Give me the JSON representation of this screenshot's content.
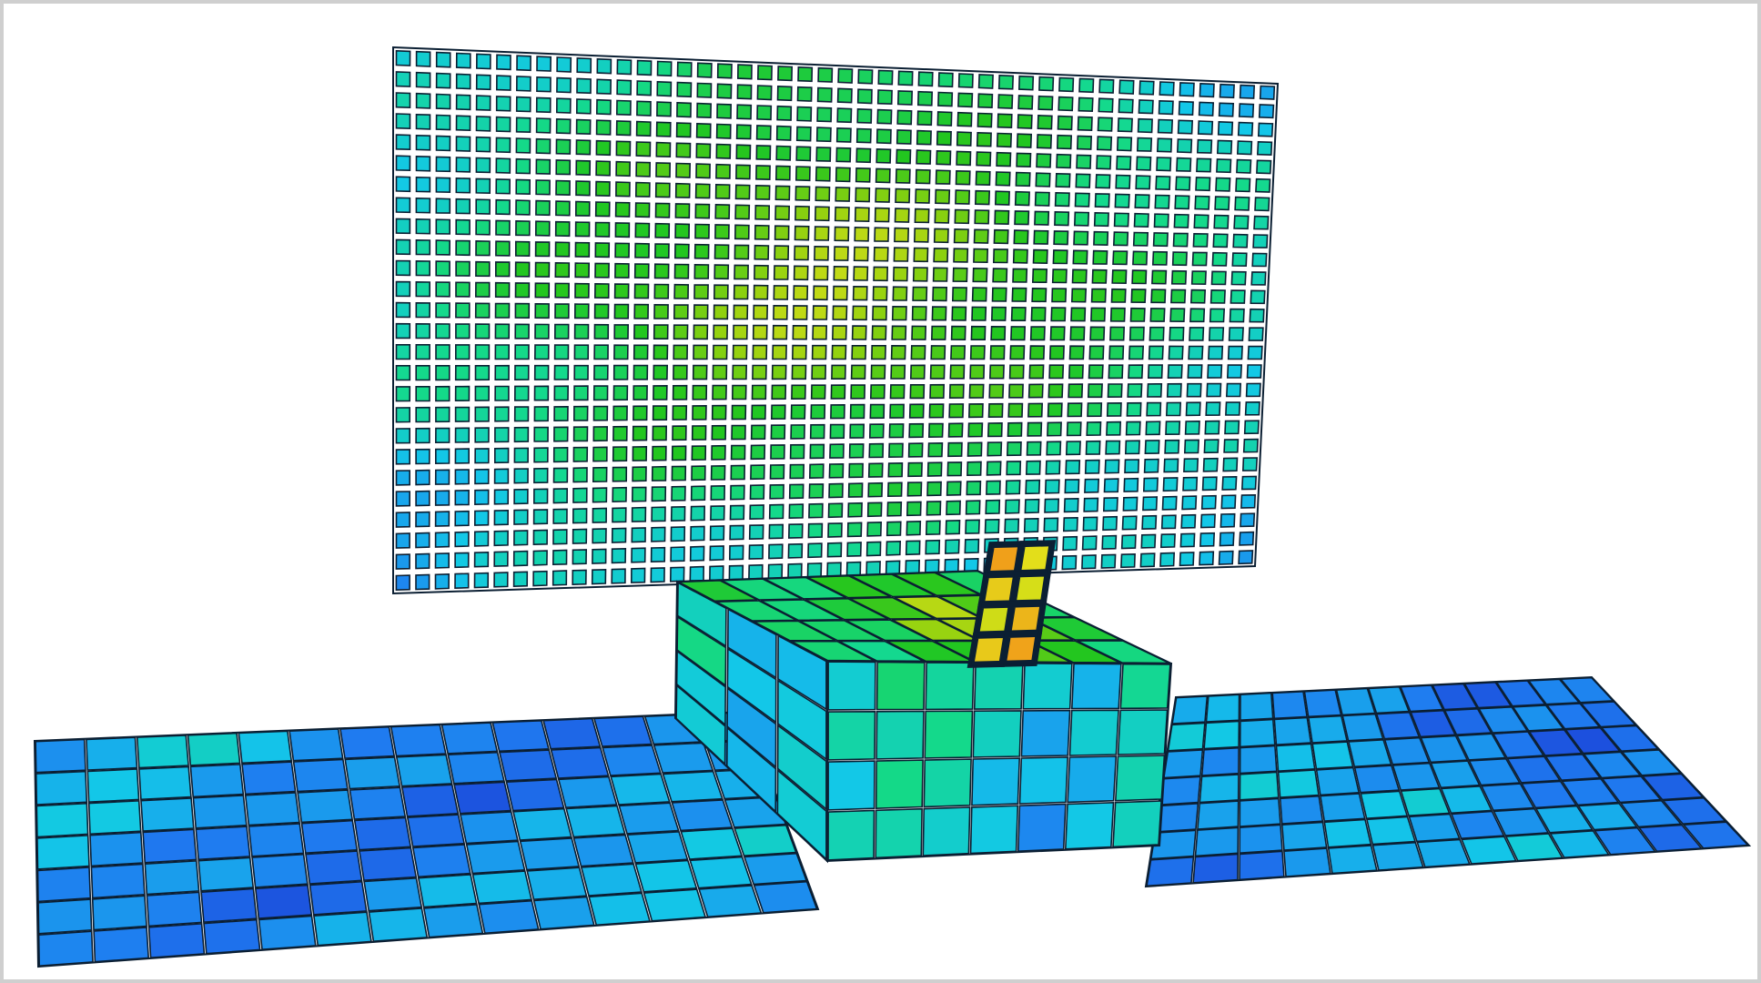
{
  "scene": {
    "background": "#ffffff",
    "frame_color": "#cfcfcf",
    "mesh_line_color": "#0b1f33",
    "colormap": [
      "#1b3fd6",
      "#1f7bf0",
      "#13c8e8",
      "#14d98a",
      "#22c61f",
      "#8fd10f",
      "#e3e01a",
      "#f0a21a",
      "#e3521a"
    ],
    "parts": [
      {
        "name": "back-wall",
        "grid": [
          44,
          26
        ],
        "field": "mid-high"
      },
      {
        "name": "center-block",
        "grid": [
          7,
          4
        ],
        "field": "mid"
      },
      {
        "name": "small-plate",
        "grid": [
          2,
          4
        ],
        "field": "high"
      },
      {
        "name": "left-slab",
        "grid": [
          14,
          7
        ],
        "field": "low"
      },
      {
        "name": "right-slab",
        "grid": [
          13,
          7
        ],
        "field": "low"
      }
    ]
  }
}
